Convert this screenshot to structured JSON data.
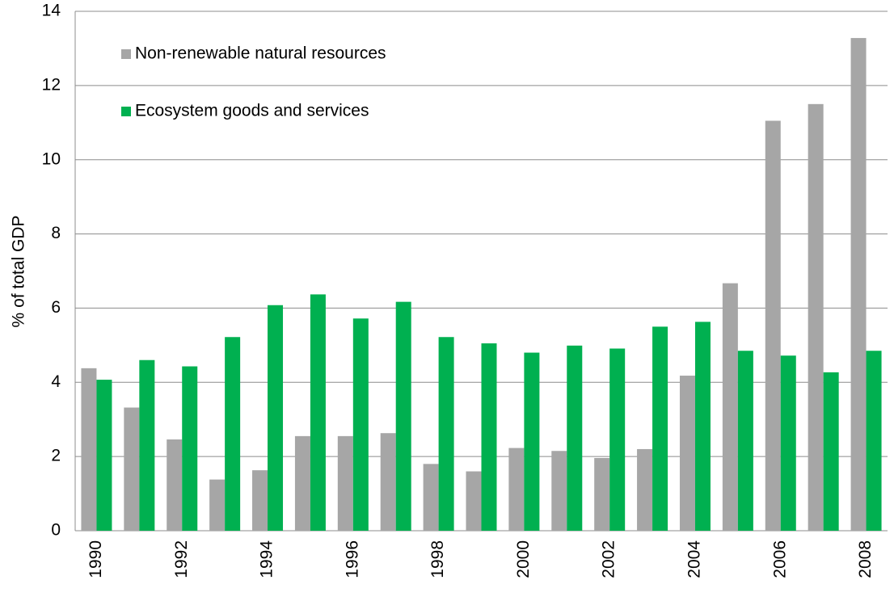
{
  "chart_data": {
    "type": "bar",
    "y_label": "% of total GDP",
    "categories": [
      "1990",
      null,
      "1992",
      null,
      "1994",
      null,
      "1996",
      null,
      "1998",
      null,
      "2000",
      null,
      "2002",
      null,
      "2004",
      null,
      "2006",
      null,
      "2008"
    ],
    "series": [
      {
        "name": "Non-renewable natural resources",
        "color": "#a6a6a6",
        "values": [
          4.38,
          3.32,
          2.46,
          1.38,
          1.63,
          2.55,
          2.55,
          2.63,
          1.8,
          1.6,
          2.23,
          2.15,
          1.96,
          2.2,
          4.18,
          6.67,
          11.05,
          11.5,
          13.28
        ]
      },
      {
        "name": "Ecosystem goods and services",
        "color": "#00b050",
        "values": [
          4.07,
          4.6,
          4.43,
          5.22,
          6.08,
          6.37,
          5.72,
          6.17,
          5.22,
          5.05,
          4.8,
          4.99,
          4.91,
          5.5,
          5.63,
          4.85,
          4.72,
          4.27,
          4.85
        ]
      }
    ],
    "ylim": [
      0,
      14
    ],
    "yticks": [
      0,
      2,
      4,
      6,
      8,
      10,
      12,
      14
    ],
    "grid": true,
    "legend": "upper left"
  }
}
